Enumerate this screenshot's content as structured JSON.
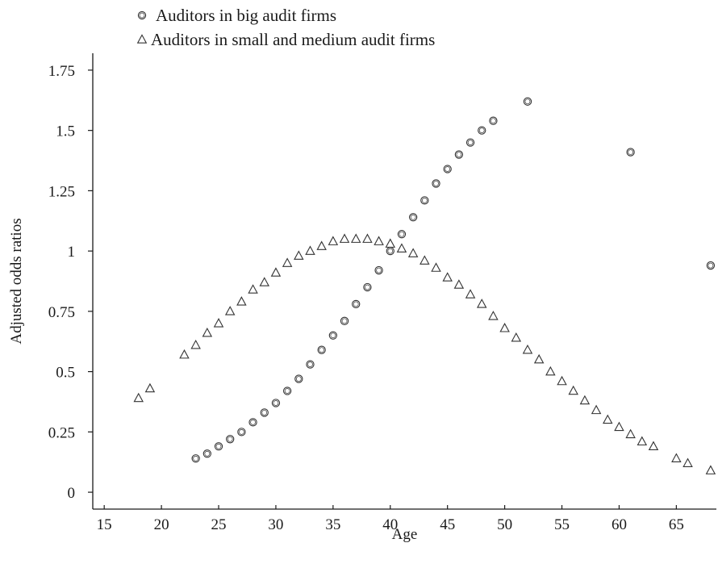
{
  "chart_data": {
    "type": "scatter",
    "title": "",
    "xlabel": "Age",
    "ylabel": "Adjusted odds ratios",
    "xlim": [
      14,
      68.5
    ],
    "ylim": [
      -0.07,
      1.82
    ],
    "xticks": [
      15,
      20,
      25,
      30,
      35,
      40,
      45,
      50,
      55,
      60,
      65
    ],
    "xtick_labels": [
      "15",
      "20",
      "25",
      "30",
      "35",
      "40",
      "45",
      "50",
      "55",
      "60",
      "65"
    ],
    "yticks": [
      0,
      0.25,
      0.5,
      0.75,
      1,
      1.25,
      1.5,
      1.75
    ],
    "ytick_labels": [
      "0",
      "0.25",
      "0.5",
      "0.75",
      "1",
      "1.25",
      "1.5",
      "1.75"
    ],
    "grid": false,
    "legend_position": "top-left",
    "series": [
      {
        "name": "Auditors in big audit firms",
        "marker": "circle",
        "points": [
          [
            23,
            0.14
          ],
          [
            24,
            0.16
          ],
          [
            25,
            0.19
          ],
          [
            26,
            0.22
          ],
          [
            27,
            0.25
          ],
          [
            28,
            0.29
          ],
          [
            29,
            0.33
          ],
          [
            30,
            0.37
          ],
          [
            31,
            0.42
          ],
          [
            32,
            0.47
          ],
          [
            33,
            0.53
          ],
          [
            34,
            0.59
          ],
          [
            35,
            0.65
          ],
          [
            36,
            0.71
          ],
          [
            37,
            0.78
          ],
          [
            38,
            0.85
          ],
          [
            39,
            0.92
          ],
          [
            40,
            1.0
          ],
          [
            41,
            1.07
          ],
          [
            42,
            1.14
          ],
          [
            43,
            1.21
          ],
          [
            44,
            1.28
          ],
          [
            45,
            1.34
          ],
          [
            46,
            1.4
          ],
          [
            47,
            1.45
          ],
          [
            48,
            1.5
          ],
          [
            49,
            1.54
          ],
          [
            52,
            1.62
          ],
          [
            61,
            1.41
          ],
          [
            68,
            0.94
          ]
        ]
      },
      {
        "name": "Auditors in small and medium audit firms",
        "marker": "triangle",
        "points": [
          [
            18,
            0.39
          ],
          [
            19,
            0.43
          ],
          [
            22,
            0.57
          ],
          [
            23,
            0.61
          ],
          [
            24,
            0.66
          ],
          [
            25,
            0.7
          ],
          [
            26,
            0.75
          ],
          [
            27,
            0.79
          ],
          [
            28,
            0.84
          ],
          [
            29,
            0.87
          ],
          [
            30,
            0.91
          ],
          [
            31,
            0.95
          ],
          [
            32,
            0.98
          ],
          [
            33,
            1.0
          ],
          [
            34,
            1.02
          ],
          [
            35,
            1.04
          ],
          [
            36,
            1.05
          ],
          [
            37,
            1.05
          ],
          [
            38,
            1.05
          ],
          [
            39,
            1.04
          ],
          [
            40,
            1.03
          ],
          [
            41,
            1.01
          ],
          [
            42,
            0.99
          ],
          [
            43,
            0.96
          ],
          [
            44,
            0.93
          ],
          [
            45,
            0.89
          ],
          [
            46,
            0.86
          ],
          [
            47,
            0.82
          ],
          [
            48,
            0.78
          ],
          [
            49,
            0.73
          ],
          [
            50,
            0.68
          ],
          [
            51,
            0.64
          ],
          [
            52,
            0.59
          ],
          [
            53,
            0.55
          ],
          [
            54,
            0.5
          ],
          [
            55,
            0.46
          ],
          [
            56,
            0.42
          ],
          [
            57,
            0.38
          ],
          [
            58,
            0.34
          ],
          [
            59,
            0.3
          ],
          [
            60,
            0.27
          ],
          [
            61,
            0.24
          ],
          [
            62,
            0.21
          ],
          [
            63,
            0.19
          ],
          [
            65,
            0.14
          ],
          [
            66,
            0.12
          ],
          [
            68,
            0.09
          ]
        ]
      }
    ]
  }
}
